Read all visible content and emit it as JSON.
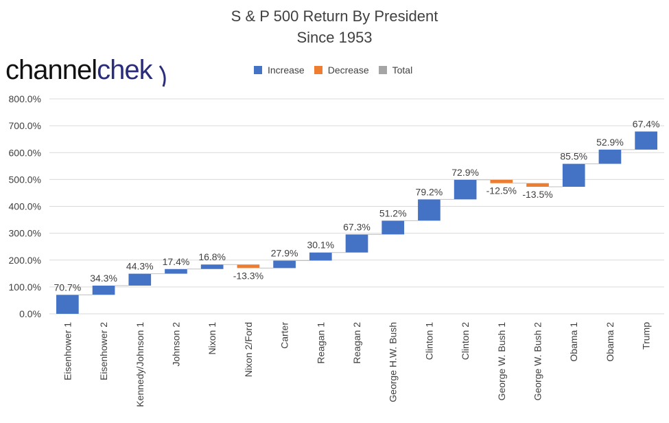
{
  "chart_data": {
    "type": "bar",
    "title": "S & P 500 Return By President",
    "subtitle": "Since 1953",
    "categories": [
      "Eisenhower 1",
      "Eisenhower 2",
      "Kennedy/Johnson 1",
      "Johnson 2",
      "Nixon 1",
      "Nixon 2/Ford",
      "Carter",
      "Reagan 1",
      "Reagan 2",
      "George H.W. Bush",
      "Clinton 1",
      "Clinton 2",
      "George W. Bush 1",
      "George W. Bush 2",
      "Obama 1",
      "Obama 2",
      "Trump"
    ],
    "values": [
      70.7,
      34.3,
      44.3,
      17.4,
      16.8,
      -13.3,
      27.9,
      30.1,
      67.3,
      51.2,
      79.2,
      72.9,
      -12.5,
      -13.5,
      85.5,
      52.9,
      67.4
    ],
    "data_labels": [
      "70.7%",
      "34.3%",
      "44.3%",
      "17.4%",
      "16.8%",
      "-13.3%",
      "27.9%",
      "30.1%",
      "67.3%",
      "51.2%",
      "79.2%",
      "72.9%",
      "-12.5%",
      "-13.5%",
      "85.5%",
      "52.9%",
      "67.4%"
    ],
    "ylim": [
      0,
      800
    ],
    "yticks": [
      "0.0%",
      "100.0%",
      "200.0%",
      "300.0%",
      "400.0%",
      "500.0%",
      "600.0%",
      "700.0%",
      "800.0%"
    ],
    "grid": true,
    "legend": {
      "placement": "top",
      "items": [
        {
          "label": "Increase",
          "color": "#4472c4"
        },
        {
          "label": "Decrease",
          "color": "#ed7d31"
        },
        {
          "label": "Total",
          "color": "#a5a5a5"
        }
      ]
    }
  },
  "logo": {
    "part1": "channel",
    "part2": "chek"
  },
  "colors": {
    "increase": "#4472c4",
    "decrease": "#ed7d31",
    "grid": "#d9d9d9",
    "text": "#404040"
  }
}
